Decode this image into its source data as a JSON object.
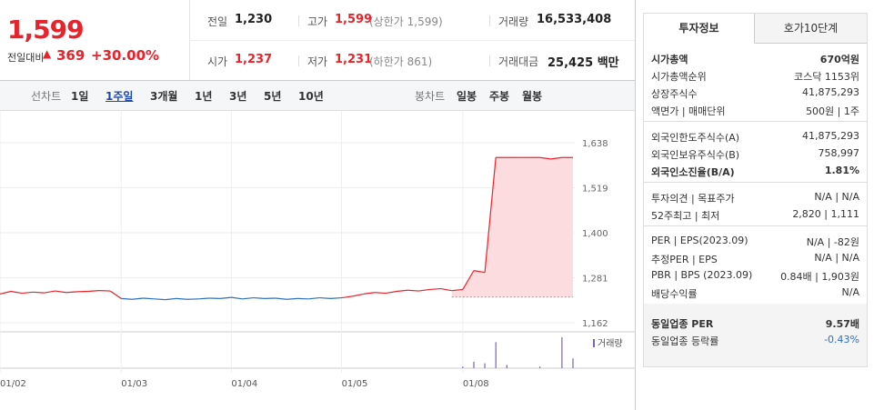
{
  "quote": {
    "price": "1,599",
    "change_label": "전일대비",
    "change": "369",
    "change_pct": "+30.00%"
  },
  "summary": [
    {
      "label": "전일",
      "value": "1,230"
    },
    {
      "label": "고가",
      "value": "1,599",
      "note": "(상한가 1,599)"
    },
    {
      "label": "거래량",
      "value": "16,533,408"
    },
    {
      "label": "시가",
      "value": "1,237"
    },
    {
      "label": "저가",
      "value": "1,231",
      "note": "(하한가 861)"
    },
    {
      "label": "거래대금",
      "value": "25,425 백만"
    }
  ],
  "toolbar": {
    "line_label": "선차트",
    "line_periods": [
      "1일",
      "1주일",
      "3개월",
      "1년",
      "3년",
      "5년",
      "10년"
    ],
    "selected": "1주일",
    "candle_label": "봉차트",
    "candle_periods": [
      "일봉",
      "주봉",
      "월봉"
    ]
  },
  "chart": {
    "type": "line",
    "categories": [
      "01/02",
      null,
      null,
      null,
      null,
      null,
      null,
      null,
      null,
      null,
      null,
      "01/03",
      null,
      null,
      null,
      null,
      null,
      null,
      null,
      null,
      null,
      "01/04",
      null,
      null,
      null,
      null,
      null,
      null,
      null,
      null,
      null,
      "01/05",
      null,
      null,
      null,
      null,
      null,
      null,
      null,
      null,
      null,
      null,
      "01/08",
      null,
      null,
      null,
      null,
      null,
      null,
      null,
      null,
      null,
      null
    ],
    "values": [
      1238,
      1245,
      1240,
      1243,
      1241,
      1246,
      1242,
      1244,
      1245,
      1247,
      1246,
      1226,
      1224,
      1227,
      1225,
      1223,
      1226,
      1224,
      1225,
      1227,
      1226,
      1229,
      1225,
      1228,
      1226,
      1227,
      1224,
      1226,
      1225,
      1228,
      1226,
      1228,
      1232,
      1238,
      1242,
      1240,
      1245,
      1248,
      1246,
      1250,
      1252,
      1247,
      1250,
      1300,
      1295,
      1599,
      1599,
      1599,
      1599,
      1599,
      1595,
      1599,
      1599
    ],
    "ylim": [
      1138,
      1727
    ],
    "yticks": [
      {
        "value": 1638,
        "label": "1,638"
      },
      {
        "value": 1519,
        "label": "1,519"
      },
      {
        "value": 1400,
        "label": "1,400"
      },
      {
        "value": 1281,
        "label": "1,281"
      },
      {
        "value": 1162,
        "label": "1,162"
      }
    ],
    "up_color": "#e8232b",
    "down_color": "#2f6fc1",
    "volume_label": "거래량",
    "volume_color": "#7d62b8",
    "volume": [
      0,
      0,
      0,
      0,
      0,
      0,
      0,
      0,
      0,
      0,
      0,
      0,
      0,
      0,
      0,
      0,
      0,
      0,
      0,
      0,
      0,
      0,
      0,
      0,
      0,
      0,
      0,
      0,
      0,
      0,
      0,
      0,
      0,
      0,
      0,
      0,
      0,
      0,
      0,
      0,
      0,
      0,
      5,
      20,
      15,
      80,
      10,
      0,
      0,
      5,
      0,
      95,
      30
    ]
  },
  "tabs": [
    "투자정보",
    "호가10단계"
  ],
  "info_groups": [
    [
      {
        "label": "시가총액",
        "value": "670억원",
        "bold": true
      },
      {
        "label": "시가총액순위",
        "value": "코스닥 1153위"
      },
      {
        "label": "상장주식수",
        "value": "41,875,293"
      },
      {
        "label": "액면가 | 매매단위",
        "value": "500원 | 1주"
      }
    ],
    [
      {
        "label": "외국인한도주식수(A)",
        "value": "41,875,293"
      },
      {
        "label": "외국인보유주식수(B)",
        "value": "758,997"
      },
      {
        "label": "외국인소진율(B/A)",
        "value": "1.81%",
        "bold": true
      }
    ],
    [
      {
        "label": "투자의견 | 목표주가",
        "value": "N/A | N/A"
      },
      {
        "label": "52주최고 | 최저",
        "value": "2,820 | 1,111"
      }
    ],
    [
      {
        "label": "PER | EPS(2023.09)",
        "value": "N/A | -82원"
      },
      {
        "label": "추정PER | EPS",
        "value": "N/A | N/A"
      },
      {
        "label": "PBR | BPS (2023.09)",
        "value": "0.84배 | 1,903원"
      },
      {
        "label": "배당수익률",
        "value": "N/A"
      }
    ],
    [
      {
        "label": "동일업종 PER",
        "value": "9.57배",
        "bold": true
      },
      {
        "label": "동일업종 등락률",
        "value": "-0.43%",
        "blue": true
      }
    ]
  ]
}
